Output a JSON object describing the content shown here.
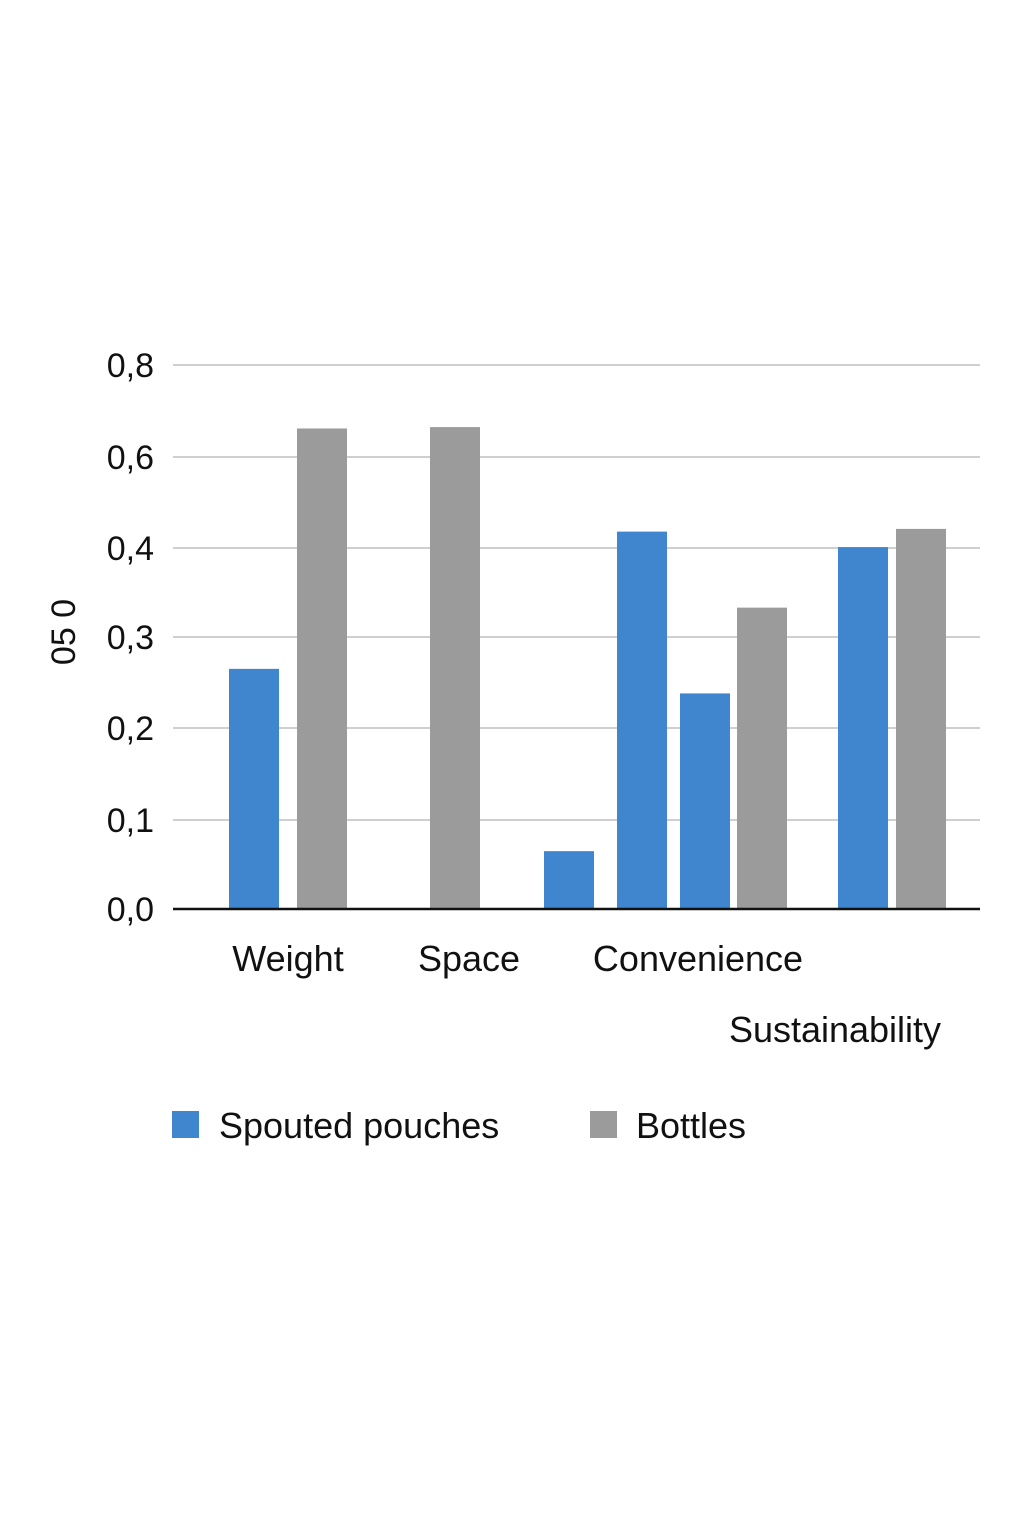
{
  "chart_data": {
    "type": "bar",
    "ylabel": "05 0",
    "y_ticks": [
      "0,0",
      "0,1",
      "0,2",
      "0,3",
      "0,4",
      "0,6",
      "0,8"
    ],
    "categories": [
      "Weight",
      "Space",
      "Convenience",
      "Sustainability"
    ],
    "series": [
      {
        "name": "Spouted pouches",
        "color": "#3f86cf"
      },
      {
        "name": "Bottles",
        "color": "#9b9b9b"
      }
    ],
    "bars": [
      {
        "series": "Spouted pouches",
        "category": "Weight",
        "value": 0.265
      },
      {
        "series": "Bottles",
        "category": "Weight",
        "value": 0.662
      },
      {
        "series": "Bottles",
        "category": "Space",
        "value": 0.665
      },
      {
        "series": "Spouted pouches",
        "category": "Convenience",
        "value": 0.065
      },
      {
        "series": "Spouted pouches",
        "category": "Convenience",
        "value": 0.436
      },
      {
        "series": "Spouted pouches",
        "category": "Convenience",
        "value": 0.238
      },
      {
        "series": "Bottles",
        "category": "Convenience",
        "value": 0.333
      },
      {
        "series": "Spouted pouches",
        "category": "Sustainability",
        "value": 0.402
      },
      {
        "series": "Bottles",
        "category": "Sustainability",
        "value": 0.442
      }
    ],
    "grid": true,
    "legend_position": "bottom"
  }
}
